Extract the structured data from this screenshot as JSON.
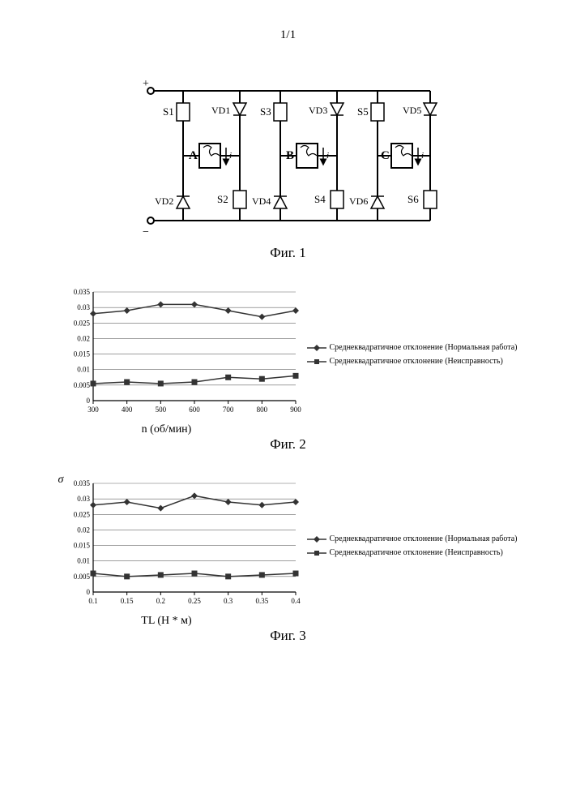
{
  "page_number": "1/1",
  "fig1": {
    "caption": "Фиг. 1",
    "labels": {
      "plus": "+",
      "minus": "−",
      "S1": "S1",
      "S2": "S2",
      "S3": "S3",
      "S4": "S4",
      "S5": "S5",
      "S6": "S6",
      "VD1": "VD1",
      "VD2": "VD2",
      "VD3": "VD3",
      "VD4": "VD4",
      "VD5": "VD5",
      "VD6": "VD6",
      "A": "A",
      "B": "B",
      "C": "C",
      "iA": "i(A)",
      "iB": "i(B)",
      "iC": "i(C)"
    }
  },
  "fig2": {
    "caption": "Фиг. 2",
    "type": "line",
    "xlabel": "n (об/мин)",
    "x_ticks": [
      "300",
      "400",
      "500",
      "600",
      "700",
      "800",
      "900"
    ],
    "y_ticks": [
      "0",
      "0.005",
      "0.01",
      "0.015",
      "0.02",
      "0.025",
      "0.03",
      "0.035"
    ],
    "ylim": [
      0,
      0.035
    ],
    "series": [
      {
        "name": "normal",
        "label": "Среднеквадратичное отклонение (Нормальная работа)",
        "marker": "diamond",
        "color": "#333333",
        "x": [
          "300",
          "400",
          "500",
          "600",
          "700",
          "800",
          "900"
        ],
        "y": [
          0.028,
          0.029,
          0.031,
          0.031,
          0.029,
          0.027,
          0.029
        ]
      },
      {
        "name": "fault",
        "label": "Среднеквадратичное отклонение (Неисправность)",
        "marker": "square",
        "color": "#333333",
        "x": [
          "300",
          "400",
          "500",
          "600",
          "700",
          "800",
          "900"
        ],
        "y": [
          0.0055,
          0.006,
          0.0055,
          0.006,
          0.0075,
          0.007,
          0.008
        ]
      }
    ],
    "grid_color": "#666666",
    "background_color": "#ffffff",
    "tick_fontsize": 9
  },
  "fig3": {
    "caption": "Фиг. 3",
    "type": "line",
    "ylabel_symbol": "σ",
    "xlabel": "TL (Н * м)",
    "x_ticks": [
      "0.1",
      "0.15",
      "0.2",
      "0.25",
      "0.3",
      "0.35",
      "0.4"
    ],
    "y_ticks": [
      "0",
      "0.005",
      "0.01",
      "0.015",
      "0.02",
      "0.025",
      "0.03",
      "0.035"
    ],
    "ylim": [
      0,
      0.035
    ],
    "series": [
      {
        "name": "normal",
        "label": "Среднеквадратичное отклонение (Нормальная работа)",
        "marker": "diamond",
        "color": "#333333",
        "x": [
          "0.1",
          "0.15",
          "0.2",
          "0.25",
          "0.3",
          "0.35",
          "0.4"
        ],
        "y": [
          0.028,
          0.029,
          0.027,
          0.031,
          0.029,
          0.028,
          0.029
        ]
      },
      {
        "name": "fault",
        "label": "Среднеквадратичное отклонение (Неисправность)",
        "marker": "square",
        "color": "#333333",
        "x": [
          "0.1",
          "0.15",
          "0.2",
          "0.25",
          "0.3",
          "0.35",
          "0.4"
        ],
        "y": [
          0.006,
          0.005,
          0.0055,
          0.006,
          0.005,
          0.0055,
          0.006
        ]
      }
    ],
    "grid_color": "#666666",
    "background_color": "#ffffff",
    "tick_fontsize": 9
  }
}
